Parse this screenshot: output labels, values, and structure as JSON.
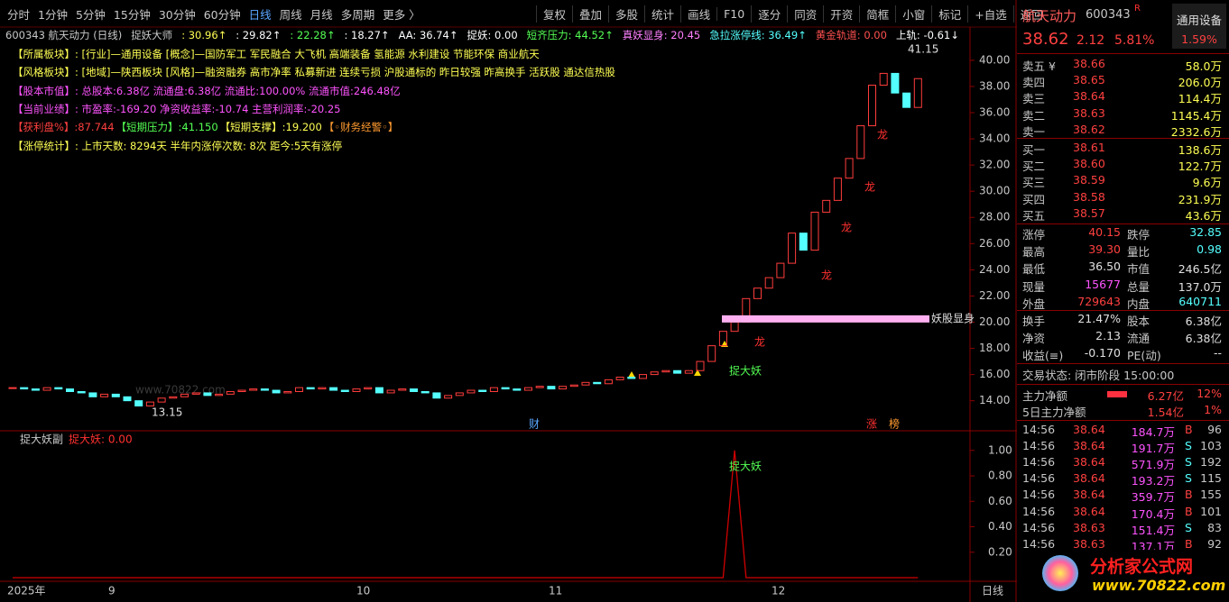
{
  "toolbar": {
    "periods": [
      "分时",
      "1分钟",
      "5分钟",
      "15分钟",
      "30分钟",
      "60分钟",
      "日线",
      "周线",
      "月线",
      "多周期",
      "更多 〉"
    ],
    "active_period": 6,
    "tools": [
      "复权",
      "叠加",
      "多股",
      "统计",
      "画线",
      "F10",
      "逐分",
      "同资",
      "开资",
      "简框",
      "小窗",
      "标记",
      "+自选",
      "返回"
    ]
  },
  "indicator_bar": [
    {
      "text": "600343 航天动力 (日线)",
      "color": "#c8c8c8"
    },
    {
      "text": "捉妖大师",
      "color": "#c8c8c8"
    },
    {
      "text": ": 30.96↑",
      "color": "#ffff54"
    },
    {
      "text": ": 29.82↑",
      "color": "#ffffff"
    },
    {
      "text": ": 22.28↑",
      "color": "#54ff54"
    },
    {
      "text": ": 18.27↑",
      "color": "#ffffff"
    },
    {
      "text": "AA: 36.74↑",
      "color": "#ffffff"
    },
    {
      "text": "捉妖: 0.00",
      "color": "#ffffff"
    },
    {
      "text": "短齐压力: 44.52↑",
      "color": "#54ff54"
    },
    {
      "text": "真妖显身: 20.45",
      "color": "#ff80ff"
    },
    {
      "text": "急拉涨停线: 36.49↑",
      "color": "#54ffff"
    },
    {
      "text": "黄金轨道: 0.00",
      "color": "#ff5050"
    },
    {
      "text": "上轨: -0.61↓",
      "color": "#ffffff"
    }
  ],
  "info_lines": [
    [
      {
        "text": "【所属板块】: [行业]—通用设备 [概念]—国防军工 军民融合 大飞机 高端装备 氢能源 水利建设 节能环保 商业航天",
        "color": "#ffff54"
      }
    ],
    [
      {
        "text": "【风格板块】: [地域]—陕西板块 [风格]—融资融券 高市净率 私募新进 连续亏损 沪股通标的 昨日较强 昨高换手 活跃股 通达信热股",
        "color": "#ffff54"
      }
    ],
    [
      {
        "text": "【股本市值】: 总股本:6.38亿 流通盘:6.38亿 流通比:100.00% 流通市值:246.48亿",
        "color": "#ff54ff"
      }
    ],
    [
      {
        "text": "【当前业绩】: 市盈率:-169.20 净资收益率:-10.74 主营利润率:-20.25",
        "color": "#ff54ff"
      }
    ],
    [
      {
        "text": "【获利盘%】:87.744",
        "color": "#ff4040"
      },
      {
        "text": "【短期压力】:41.150",
        "color": "#54ff54"
      },
      {
        "text": "【短期支撑】:19.200",
        "color": "#ffff54"
      },
      {
        "text": "【◦财务经警◦】",
        "color": "#ff9a30"
      }
    ],
    [
      {
        "text": "【涨停统计】: 上市天数: 8294天 半年内涨停次数: 8次 距今:5天有涨停",
        "color": "#ffff54"
      }
    ]
  ],
  "main_chart": {
    "ylim": [
      12.6,
      41.3
    ],
    "yticks": [
      {
        "value": 14,
        "label": "14.00"
      },
      {
        "value": 16,
        "label": "16.00"
      },
      {
        "value": 18,
        "label": "18.00"
      },
      {
        "value": 20,
        "label": "20.00"
      },
      {
        "value": 22,
        "label": "22.00"
      },
      {
        "value": 24,
        "label": "24.00"
      },
      {
        "value": 26,
        "label": "26.00"
      },
      {
        "value": 28,
        "label": "28.00"
      },
      {
        "value": 30,
        "label": "30.00"
      },
      {
        "value": 32,
        "label": "32.00"
      },
      {
        "value": 34,
        "label": "34.00"
      },
      {
        "value": 36,
        "label": "36.00"
      },
      {
        "value": 38,
        "label": "38.00"
      },
      {
        "value": 40,
        "label": "40.00"
      }
    ],
    "closes": [
      15.0,
      14.9,
      14.8,
      15.0,
      14.9,
      14.7,
      14.6,
      14.3,
      14.5,
      14.3,
      14.0,
      13.6,
      13.9,
      14.2,
      14.3,
      14.5,
      14.6,
      14.4,
      14.5,
      14.7,
      14.8,
      14.9,
      14.8,
      14.6,
      14.7,
      15.0,
      14.9,
      15.0,
      14.8,
      14.7,
      14.9,
      15.0,
      14.6,
      14.8,
      14.9,
      14.7,
      14.6,
      14.2,
      14.4,
      14.6,
      14.8,
      14.7,
      15.0,
      14.9,
      14.8,
      15.0,
      15.1,
      14.9,
      15.1,
      15.2,
      15.4,
      15.3,
      15.6,
      15.8,
      15.7,
      16.0,
      16.2,
      16.3,
      16.1,
      16.3,
      17.0,
      18.2,
      19.3,
      20.0,
      21.8,
      22.6,
      23.4,
      24.5,
      26.8,
      25.5,
      28.4,
      29.3,
      31.0,
      32.5,
      35.0,
      38.1,
      39.0,
      37.5,
      36.4,
      38.6
    ],
    "up_color": "#ff3c3c",
    "down_color": "#54ffff",
    "signal_level": 20.25,
    "signal_color": "#ffb0f0",
    "signal_label": "妖股显身",
    "high_label": "41.15",
    "low_label": "13.15",
    "signal_text": "捉大妖",
    "dragon_marks": [
      "龙",
      "龙",
      "龙",
      "龙",
      "龙"
    ],
    "event_marks": [
      "财",
      "涨",
      "榜"
    ],
    "watermark": "www.70822.com"
  },
  "sub_chart": {
    "title": "捉大妖副",
    "value_text": "捉大妖: 0.00",
    "ylim": [
      0,
      1.14
    ],
    "yticks": [
      {
        "value": 0.2,
        "label": "0.20"
      },
      {
        "value": 0.4,
        "label": "0.40"
      },
      {
        "value": 0.6,
        "label": "0.60"
      },
      {
        "value": 0.8,
        "label": "0.80"
      },
      {
        "value": 1,
        "label": "1.00"
      }
    ],
    "values": [
      0,
      0,
      0,
      0,
      0,
      0,
      0,
      0,
      0,
      0,
      0,
      0,
      0,
      0,
      0,
      0,
      0,
      0,
      0,
      0,
      0,
      0,
      0,
      0,
      0,
      0,
      0,
      0,
      0,
      0,
      0,
      0,
      0,
      0,
      0,
      0,
      0,
      0,
      0,
      0,
      0,
      0,
      0,
      0,
      0,
      0,
      0,
      0,
      0,
      0,
      0,
      0,
      0,
      0,
      0,
      0,
      0,
      0,
      0,
      0,
      0,
      0,
      0,
      1,
      0,
      0,
      0,
      0,
      0,
      0,
      0,
      0,
      0,
      0,
      0,
      0,
      0,
      0,
      0,
      0
    ],
    "color": "#d00000",
    "signal_text": "捉大妖"
  },
  "date_axis": [
    "2025年",
    "9",
    "10",
    "11",
    "12",
    "日线"
  ],
  "quote": {
    "name": "航天动力",
    "code": "600343",
    "flag": "R",
    "industry": "通用设备",
    "price": "38.62",
    "change": "2.12",
    "pct": "5.81%",
    "ratio": "1.59%",
    "asks": [
      {
        "label": "卖五 ¥",
        "price": "38.66",
        "vol": "58.0万"
      },
      {
        "label": "卖四",
        "price": "38.65",
        "vol": "206.0万"
      },
      {
        "label": "卖三",
        "price": "38.64",
        "vol": "114.4万"
      },
      {
        "label": "卖二",
        "price": "38.63",
        "vol": "1145.4万"
      },
      {
        "label": "卖一",
        "price": "38.62",
        "vol": "2332.6万"
      }
    ],
    "bids": [
      {
        "label": "买一",
        "price": "38.61",
        "vol": "138.6万"
      },
      {
        "label": "买二",
        "price": "38.60",
        "vol": "122.7万"
      },
      {
        "label": "买三",
        "price": "38.59",
        "vol": "9.6万"
      },
      {
        "label": "买四",
        "price": "38.58",
        "vol": "231.9万"
      },
      {
        "label": "买五",
        "price": "38.57",
        "vol": "43.6万"
      }
    ],
    "stats": [
      [
        {
          "label": "涨停",
          "value": "40.15",
          "color": "#ff4040"
        },
        {
          "label": "跌停",
          "value": "32.85",
          "color": "#54ffff"
        }
      ],
      [
        {
          "label": "最高",
          "value": "39.30",
          "color": "#ff4040"
        },
        {
          "label": "量比",
          "value": "0.98",
          "color": "#54ffff"
        }
      ],
      [
        {
          "label": "最低",
          "value": "36.50",
          "color": "#e0e0e0"
        },
        {
          "label": "市值",
          "value": "246.5亿",
          "color": "#e0e0e0"
        }
      ],
      [
        {
          "label": "现量",
          "value": "15677",
          "color": "#ff54ff"
        },
        {
          "label": "总量",
          "value": "137.0万",
          "color": "#e0e0e0"
        }
      ],
      [
        {
          "label": "外盘",
          "value": "729643",
          "color": "#ff4040"
        },
        {
          "label": "内盘",
          "value": "640711",
          "color": "#54ffff"
        }
      ]
    ],
    "stats2": [
      [
        {
          "label": "换手",
          "value": "21.47%",
          "color": "#e0e0e0"
        },
        {
          "label": "股本",
          "value": "6.38亿",
          "color": "#e0e0e0"
        }
      ],
      [
        {
          "label": "净资",
          "value": "2.13",
          "color": "#e0e0e0"
        },
        {
          "label": "流通",
          "value": "6.38亿",
          "color": "#e0e0e0"
        }
      ],
      [
        {
          "label": "收益(≡)",
          "value": "-0.170",
          "color": "#e0e0e0"
        },
        {
          "label": "PE(动)",
          "value": "--",
          "color": "#e0e0e0"
        }
      ]
    ],
    "status": "交易状态: 闭市阶段 15:00:00",
    "flows": [
      {
        "label": "主力净额",
        "value": "6.27亿",
        "pct": "12%"
      },
      {
        "label": "5日主力净额",
        "value": "1.54亿",
        "pct": "1%"
      }
    ],
    "ticks": [
      [
        "14:56",
        "38.64",
        "184.7万",
        "B",
        "96"
      ],
      [
        "14:56",
        "38.64",
        "191.7万",
        "S",
        "103"
      ],
      [
        "14:56",
        "38.64",
        "571.9万",
        "S",
        "192"
      ],
      [
        "14:56",
        "38.64",
        "193.2万",
        "S",
        "115"
      ],
      [
        "14:56",
        "38.64",
        "359.7万",
        "B",
        "155"
      ],
      [
        "14:56",
        "38.64",
        "170.4万",
        "B",
        "101"
      ],
      [
        "14:56",
        "38.63",
        "151.4万",
        "S",
        "83"
      ],
      [
        "14:56",
        "38.63",
        "137.1万",
        "B",
        "92"
      ]
    ]
  },
  "logo": {
    "title": "分析家公式网",
    "url": "www.70822.com"
  }
}
